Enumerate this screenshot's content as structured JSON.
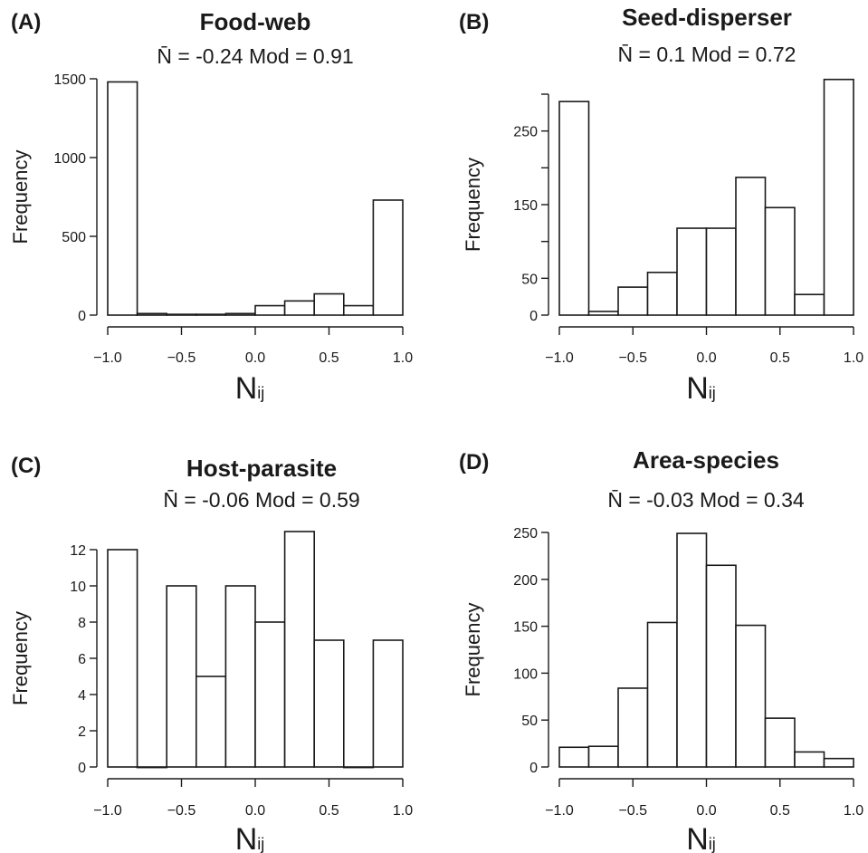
{
  "chart_data": [
    {
      "panel": "(A)",
      "type": "bar",
      "title": "Food-web",
      "subtitle": "N̄ = -0.24 Mod = 0.91",
      "xlabel": "N",
      "xlabel_sub": "ij",
      "ylabel": "Frequency",
      "bin_edges": [
        -1.0,
        -0.8,
        -0.6,
        -0.4,
        -0.2,
        0.0,
        0.2,
        0.4,
        0.6,
        0.8,
        1.0
      ],
      "values": [
        1480,
        10,
        5,
        5,
        10,
        60,
        90,
        135,
        60,
        730
      ],
      "xlim": [
        -1.0,
        1.0
      ],
      "ylim": [
        0,
        1500
      ],
      "xticks": [
        -1.0,
        -0.5,
        0.0,
        0.5,
        1.0
      ],
      "xtick_labels": [
        "−1.0",
        "−0.5",
        "0.0",
        "0.5",
        "1.0"
      ],
      "yticks": [
        0,
        500,
        1000,
        1500
      ],
      "ytick_labels": [
        "0",
        "500",
        "1000",
        "1500"
      ],
      "grid": false
    },
    {
      "panel": "(B)",
      "type": "bar",
      "title": "Seed-disperser",
      "subtitle": "N̄ = 0.1 Mod = 0.72",
      "xlabel": "N",
      "xlabel_sub": "ij",
      "ylabel": "Frequency",
      "bin_edges": [
        -1.0,
        -0.8,
        -0.6,
        -0.4,
        -0.2,
        0.0,
        0.2,
        0.4,
        0.6,
        0.8,
        1.0
      ],
      "values": [
        290,
        5,
        38,
        58,
        118,
        118,
        187,
        146,
        28,
        320
      ],
      "xlim": [
        -1.0,
        1.0
      ],
      "ylim": [
        0,
        300
      ],
      "xticks": [
        -1.0,
        -0.5,
        0.0,
        0.5,
        1.0
      ],
      "xtick_labels": [
        "−1.0",
        "−0.5",
        "0.0",
        "0.5",
        "1.0"
      ],
      "yticks": [
        0,
        50,
        100,
        150,
        200,
        250,
        300
      ],
      "ytick_labels": [
        "0",
        "50",
        "",
        "150",
        "",
        "250",
        ""
      ],
      "grid": false
    },
    {
      "panel": "(C)",
      "type": "bar",
      "title": "Host-parasite",
      "subtitle": "N̄ = -0.06 Mod = 0.59",
      "xlabel": "N",
      "xlabel_sub": "ij",
      "ylabel": "Frequency",
      "bin_edges": [
        -1.0,
        -0.8,
        -0.6,
        -0.4,
        -0.2,
        0.0,
        0.2,
        0.4,
        0.6,
        0.8,
        1.0
      ],
      "values": [
        12,
        0,
        10,
        5,
        10,
        8,
        13,
        7,
        0,
        7
      ],
      "xlim": [
        -1.0,
        1.0
      ],
      "ylim": [
        0,
        12
      ],
      "xticks": [
        -1.0,
        -0.5,
        0.0,
        0.5,
        1.0
      ],
      "xtick_labels": [
        "−1.0",
        "−0.5",
        "0.0",
        "0.5",
        "1.0"
      ],
      "yticks": [
        0,
        2,
        4,
        6,
        8,
        10,
        12
      ],
      "ytick_labels": [
        "0",
        "2",
        "4",
        "6",
        "8",
        "10",
        "12"
      ],
      "grid": false
    },
    {
      "panel": "(D)",
      "type": "bar",
      "title": "Area-species",
      "subtitle": "N̄ = -0.03 Mod = 0.34",
      "xlabel": "N",
      "xlabel_sub": "ij",
      "ylabel": "Frequency",
      "bin_edges": [
        -1.0,
        -0.8,
        -0.6,
        -0.4,
        -0.2,
        0.0,
        0.2,
        0.4,
        0.6,
        0.8,
        1.0
      ],
      "values": [
        21,
        22,
        84,
        154,
        249,
        215,
        151,
        52,
        16,
        9
      ],
      "xlim": [
        -1.0,
        1.0
      ],
      "ylim": [
        0,
        250
      ],
      "xticks": [
        -1.0,
        -0.5,
        0.0,
        0.5,
        1.0
      ],
      "xtick_labels": [
        "−1.0",
        "−0.5",
        "0.0",
        "0.5",
        "1.0"
      ],
      "yticks": [
        0,
        50,
        100,
        150,
        200,
        250
      ],
      "ytick_labels": [
        "0",
        "50",
        "100",
        "150",
        "200",
        "250"
      ],
      "grid": false
    }
  ]
}
